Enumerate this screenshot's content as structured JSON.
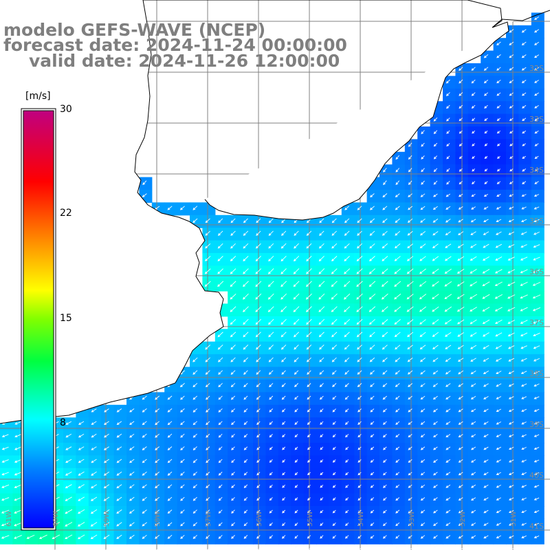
{
  "titles": {
    "model": "modelo GEFS-WAVE (NCEP)",
    "forecast": "forecast date: 2024-11-24 00:00:00",
    "valid": "valid date: 2024-11-26 12:00:00"
  },
  "colorbar": {
    "unit": "[m/s]",
    "range": [
      0,
      30
    ],
    "tick_labels": [
      "30",
      "22",
      "15",
      "8"
    ],
    "colormap": [
      "#0000ff",
      "#0080ff",
      "#00ffff",
      "#00ff00",
      "#ffff00",
      "#ff8000",
      "#ff0000",
      "#c00080"
    ]
  },
  "map": {
    "lat_labels": [
      "32S",
      "33S",
      "34S",
      "35S",
      "36S",
      "37S",
      "38S",
      "39S",
      "40S",
      "41S"
    ],
    "lon_labels": [
      "61W",
      "60W",
      "59W",
      "58W",
      "57W",
      "56W",
      "55W",
      "54W",
      "53W",
      "52W",
      "51W"
    ],
    "coast_color": "#000000",
    "grid_color": "#808080",
    "arrow_color": "#ffffff"
  }
}
